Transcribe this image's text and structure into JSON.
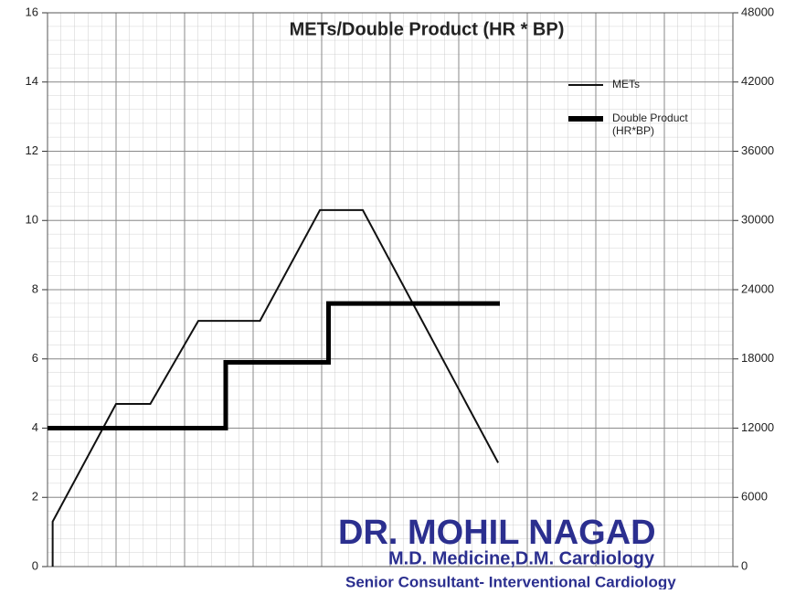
{
  "chart_data": {
    "type": "line",
    "title": "METs/Double Product (HR * BP)",
    "xlim": [
      0,
      20
    ],
    "ylim": [
      0,
      16
    ],
    "yticks": [
      0,
      2,
      4,
      6,
      8,
      10,
      12,
      14,
      16
    ],
    "y2lim": [
      0,
      48000
    ],
    "y2ticks": [
      0,
      6000,
      12000,
      18000,
      24000,
      30000,
      36000,
      42000,
      48000
    ],
    "grid": true,
    "legend": "top-right",
    "series": [
      {
        "name": "METs",
        "color": "#111111",
        "x": [
          0.15,
          0.15,
          2.0,
          3.0,
          4.4,
          6.2,
          7.95,
          9.2,
          13.15
        ],
        "values": [
          0,
          1.3,
          4.7,
          4.7,
          7.1,
          7.1,
          10.3,
          10.3,
          3.0
        ]
      },
      {
        "name": "Double Product (HR*BP)",
        "color": "#000000",
        "axis": "y2",
        "x": [
          0,
          5.2,
          5.2,
          8.2,
          8.2,
          13.2
        ],
        "values": [
          12000,
          12000,
          17700,
          17700,
          22800,
          22800
        ]
      }
    ],
    "stamp": {
      "name": "DR. MOHIL NAGAD",
      "degree": "M.D. Medicine,D.M. Cardiology",
      "role": "Senior Consultant- Interventional Cardiology"
    }
  }
}
